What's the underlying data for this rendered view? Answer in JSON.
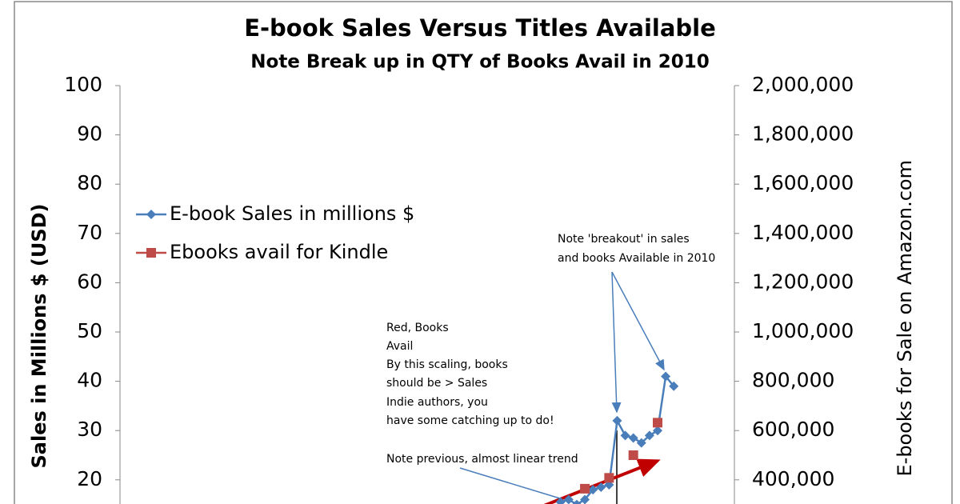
{
  "chart_data": {
    "type": "line",
    "title": "E-book Sales Versus Titles Available",
    "subtitle": "Note Break up in QTY of Books Avail in 2010",
    "y_label": "Sales in Millions $ (USD)",
    "y2_label": "E-books for Sale on Amazon.com",
    "annotations": [
      "Note 'breakout' in sales",
      "and books Available in 2010",
      "Red, Books",
      "Avail",
      "By this scaling, books",
      "should be > Sales",
      "Indie authors, you",
      "have some catching up to do!",
      "Note previous, almost linear trend"
    ],
    "categories": [
      null,
      null,
      null,
      null,
      null,
      null,
      null,
      null,
      null,
      null,
      null,
      null,
      null,
      null,
      null,
      null,
      null,
      null,
      null,
      null,
      null,
      null,
      null,
      null,
      null,
      null,
      null,
      null,
      null,
      null,
      null,
      null,
      null,
      null,
      null,
      null,
      null,
      null,
      null,
      null,
      null,
      null,
      null,
      null,
      null,
      null,
      null,
      null,
      null,
      null,
      null,
      null,
      null,
      null,
      null,
      null,
      null,
      null,
      null,
      null,
      null,
      null,
      null,
      null,
      null,
      null,
      null,
      null,
      null,
      null,
      null,
      null,
      null,
      null,
      null,
      null
    ],
    "series": [
      {
        "name": "E-book Sales in millions $",
        "color": "#4a7ebb",
        "marker": "diamond",
        "values": [
          null,
          null,
          null,
          null,
          null,
          null,
          null,
          null,
          null,
          null,
          null,
          null,
          null,
          null,
          null,
          null,
          null,
          null,
          null,
          null,
          null,
          null,
          null,
          null,
          null,
          null,
          null,
          null,
          null,
          null,
          null,
          null,
          null,
          null,
          null,
          null,
          null,
          null,
          null,
          null,
          null,
          null,
          null,
          null,
          null,
          null,
          null,
          null,
          null,
          null,
          null,
          null,
          null,
          null,
          15.5,
          16,
          15,
          16,
          18,
          18.5,
          19,
          32,
          29,
          28.5,
          27.5,
          29,
          30,
          41,
          39,
          null,
          null,
          null,
          null,
          null,
          null,
          null
        ]
      },
      {
        "name": "Ebooks avail for Kindle",
        "color": "#be4b48",
        "marker": "square",
        "axis": "y2",
        "values": [
          null,
          null,
          null,
          null,
          null,
          null,
          null,
          null,
          null,
          null,
          null,
          null,
          null,
          null,
          null,
          null,
          null,
          null,
          null,
          null,
          null,
          null,
          null,
          null,
          null,
          null,
          null,
          null,
          null,
          null,
          null,
          null,
          null,
          null,
          null,
          null,
          null,
          null,
          null,
          null,
          null,
          null,
          null,
          null,
          null,
          null,
          null,
          null,
          null,
          null,
          null,
          null,
          null,
          null,
          null,
          null,
          null,
          364000,
          null,
          null,
          408000,
          null,
          null,
          500000,
          null,
          null,
          632000,
          null,
          null,
          null,
          null,
          null,
          null,
          null,
          null,
          null
        ]
      }
    ],
    "ylim": [
      0,
      100
    ],
    "yticks": [
      20,
      30,
      40,
      50,
      60,
      70,
      80,
      90,
      100
    ],
    "y2lim": [
      0,
      2000000
    ],
    "y2ticks": [
      {
        "value": 400000,
        "label": "400,000"
      },
      {
        "value": 600000,
        "label": "600,000"
      },
      {
        "value": 800000,
        "label": "800,000"
      },
      {
        "value": 1000000,
        "label": "1,000,000"
      },
      {
        "value": 1200000,
        "label": "1,200,000"
      },
      {
        "value": 1400000,
        "label": "1,400,000"
      },
      {
        "value": 1600000,
        "label": "1,600,000"
      },
      {
        "value": 1800000,
        "label": "1,800,000"
      },
      {
        "value": 2000000,
        "label": "2,000,000"
      }
    ],
    "legend": "upper left",
    "grid": false
  }
}
